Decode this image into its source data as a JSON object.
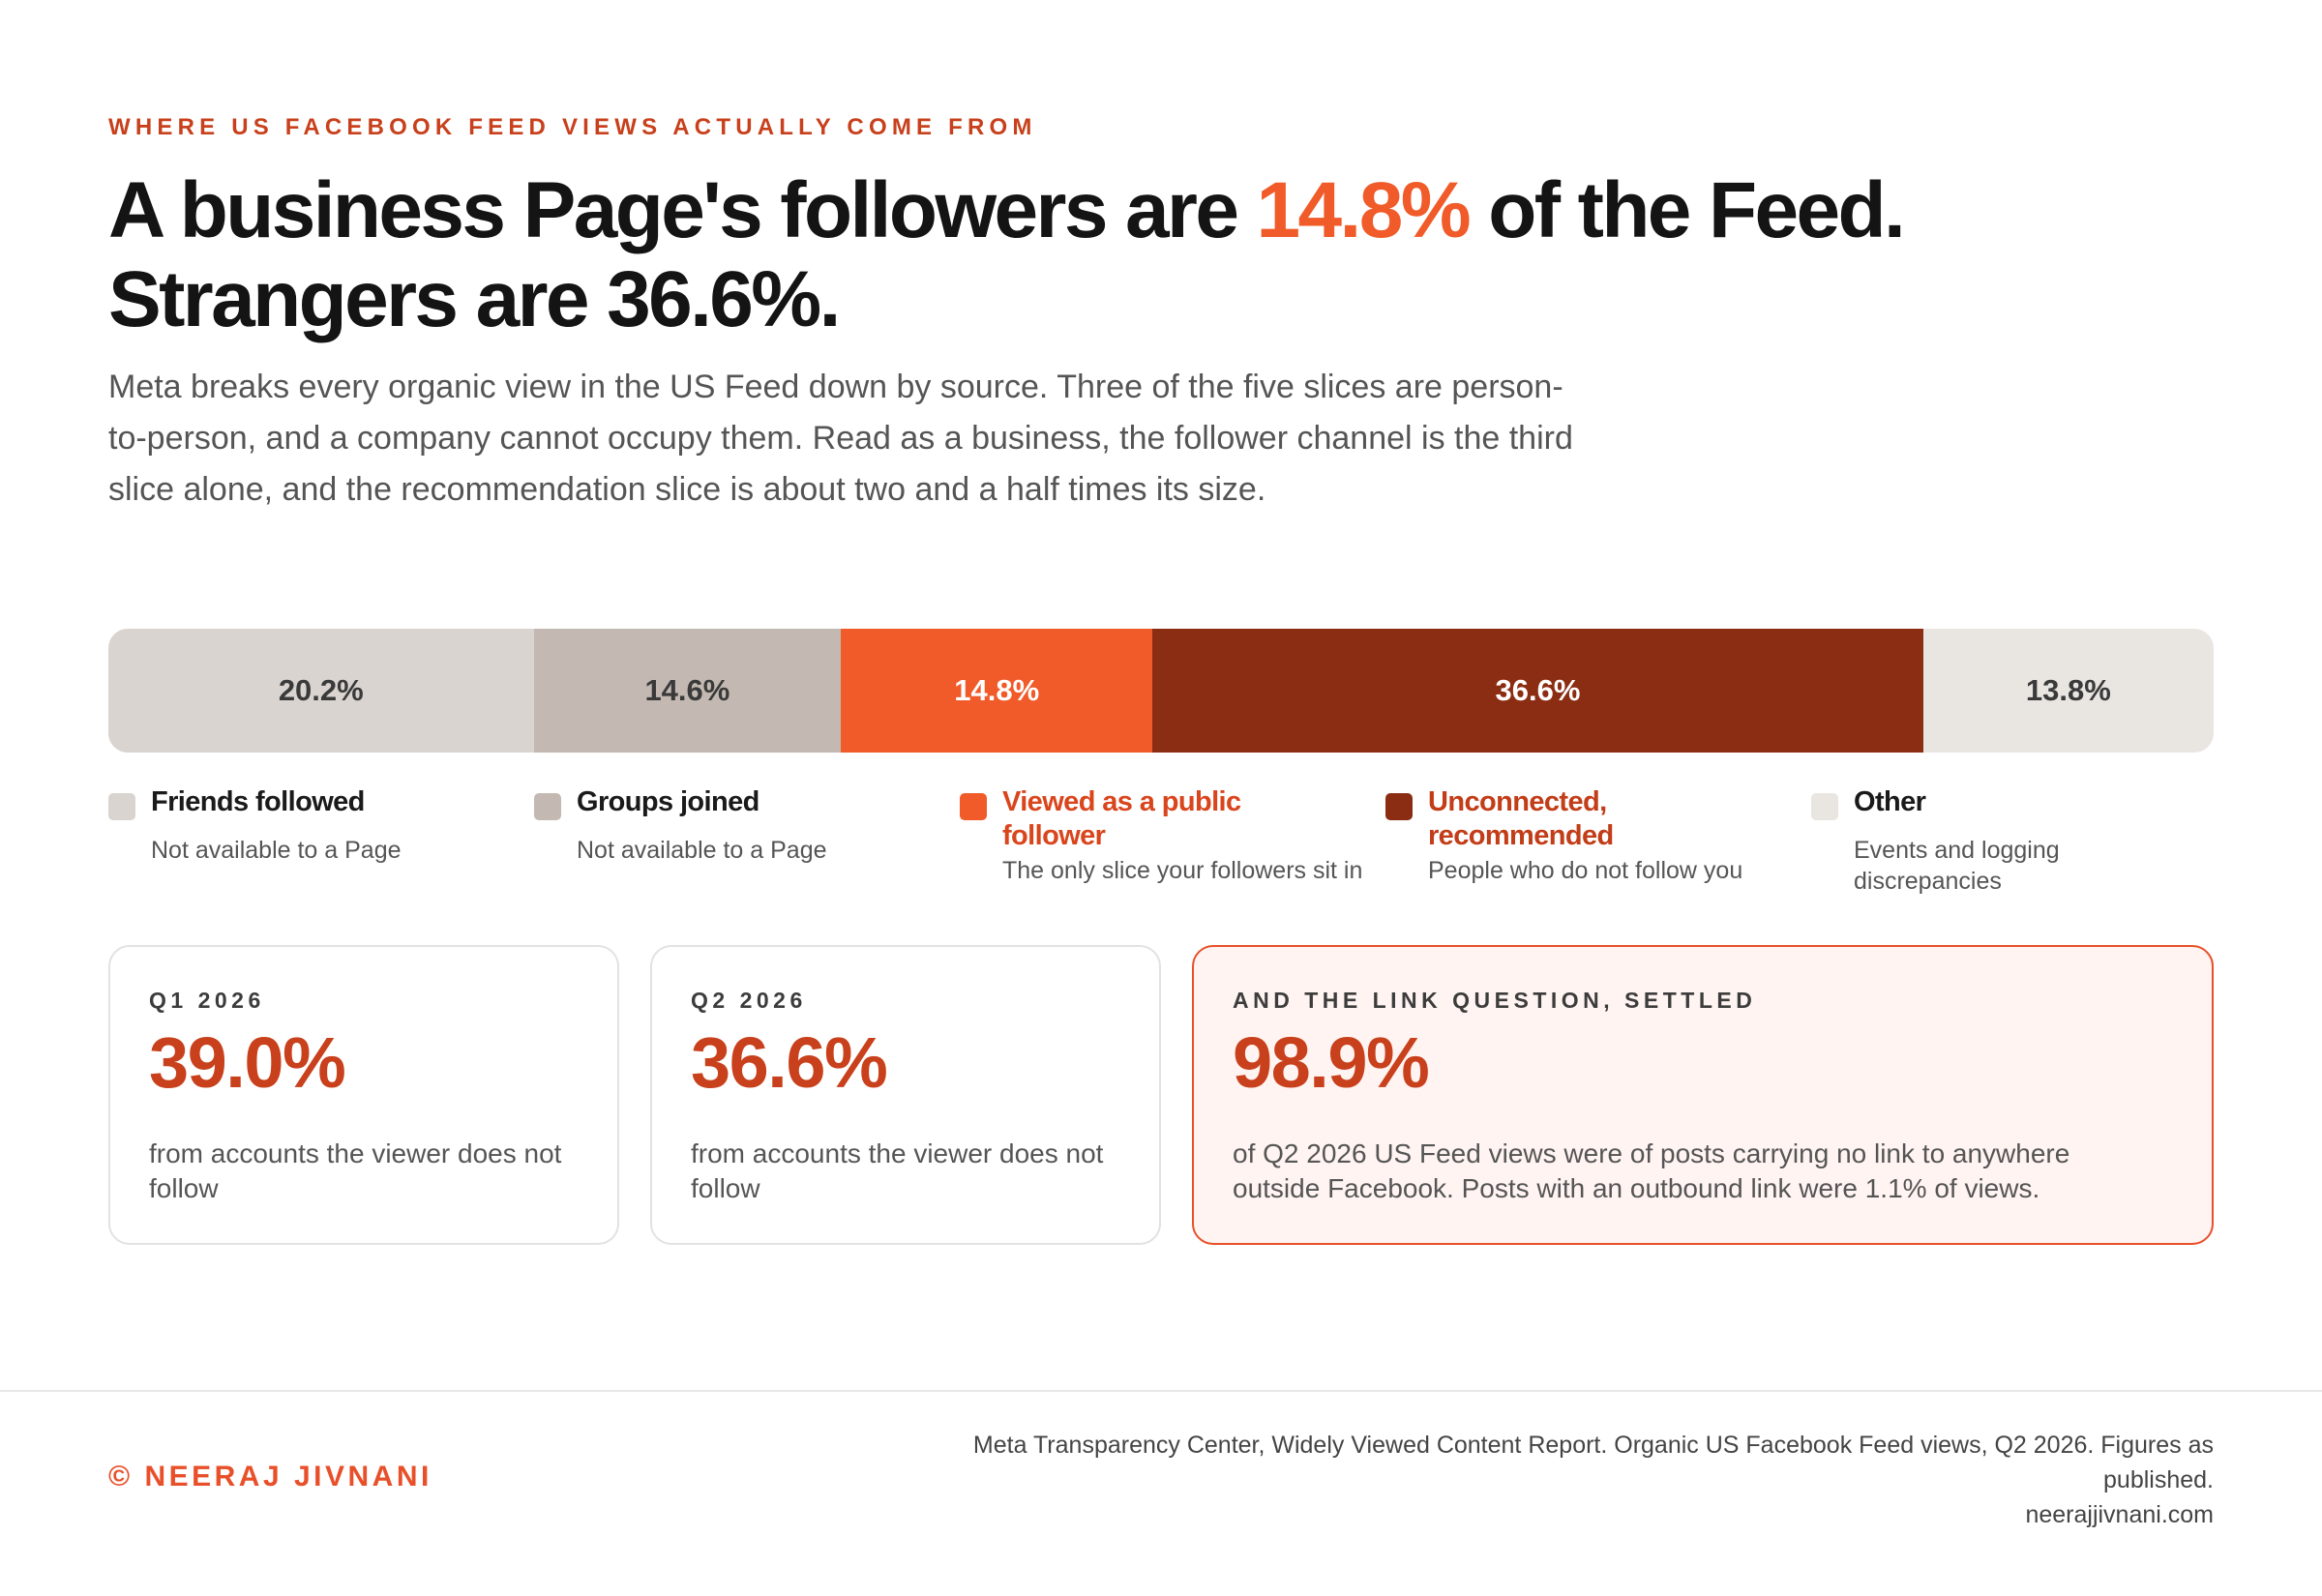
{
  "kicker": "WHERE US FACEBOOK FEED VIEWS ACTUALLY COME FROM",
  "headline": {
    "part1": "A business Page's followers are ",
    "highlight": "14.8%",
    "part2": " of the Feed. Strangers are 36.6%."
  },
  "dek": "Meta breaks every organic view in the US Feed down by source. Three of the five slices are person-to-person, and a company cannot occupy them. Read as a business, the follower channel is the third slice alone, and the recommendation slice is about two and a half times its size.",
  "chart_data": {
    "type": "bar",
    "orientation": "horizontal-stacked",
    "unit": "%",
    "series": [
      {
        "name": "Friends followed",
        "value": 20.2,
        "label": "20.2%",
        "note": "Not available to a Page",
        "color": "#d9d4cf",
        "text_color": "#3a3a3a",
        "legend_color": "#1a1a1a"
      },
      {
        "name": "Groups joined",
        "value": 14.6,
        "label": "14.6%",
        "note": "Not available to a Page",
        "color": "#c3b9b2",
        "text_color": "#3a3a3a",
        "legend_color": "#1a1a1a"
      },
      {
        "name": "Viewed as a public follower",
        "value": 14.8,
        "label": "14.8%",
        "note": "The only slice your followers sit in",
        "color": "#f15a29",
        "text_color": "#ffffff",
        "legend_color": "#d9451c"
      },
      {
        "name": "Unconnected, recommended",
        "value": 36.6,
        "label": "36.6%",
        "note": "People who do not follow you",
        "color": "#8b2d13",
        "text_color": "#ffffff",
        "legend_color": "#c23d18"
      },
      {
        "name": "Other",
        "value": 13.8,
        "label": "13.8%",
        "note": "Events and logging discrepancies",
        "color": "#e9e6e2",
        "text_color": "#3a3a3a",
        "legend_color": "#1a1a1a"
      }
    ]
  },
  "cards": [
    {
      "label": "Q1 2026",
      "value": "39.0%",
      "desc": "from accounts the viewer does not follow"
    },
    {
      "label": "Q2 2026",
      "value": "36.6%",
      "desc": "from accounts the viewer does not follow"
    },
    {
      "label": "AND THE LINK QUESTION, SETTLED",
      "value": "98.9%",
      "desc": "of Q2 2026 US Feed views were of posts carrying no link to anywhere outside Facebook. Posts with an outbound link were 1.1% of views."
    }
  ],
  "footer": {
    "brand": "© NEERAJ JIVNANI",
    "source": "Meta Transparency Center, Widely Viewed Content Report. Organic US Facebook Feed views, Q2 2026. Figures as published.",
    "url": "neerajjivnani.com"
  }
}
